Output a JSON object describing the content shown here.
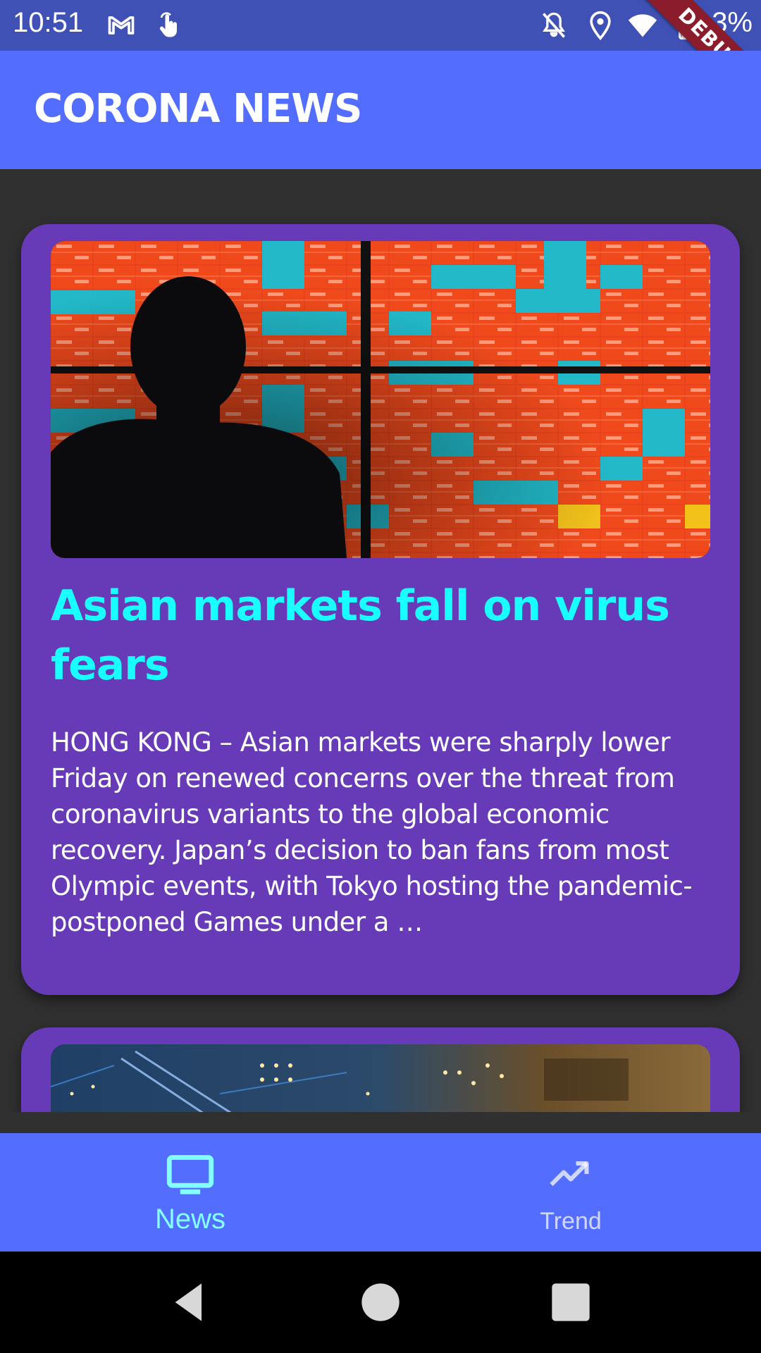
{
  "status_bar": {
    "time": "10:51",
    "battery_percent": "3%",
    "icons": [
      "gmail-icon",
      "touch-icon",
      "notifications-off-icon",
      "location-icon",
      "wifi-icon",
      "battery-icon"
    ]
  },
  "debug_banner": {
    "label": "DEBUG"
  },
  "app_bar": {
    "title": "CORONA NEWS"
  },
  "feed": {
    "articles": [
      {
        "title": "Asian markets fall on virus fears",
        "summary": "HONG KONG  – Asian markets were sharply lower Friday on renewed concerns over the threat from coronavirus variants to the global economic recovery. Japan’s decision to ban fans from most Olympic events, with Tokyo hosting the pandemic-postponed Games under a …",
        "image": "stock-market-board-photo"
      },
      {
        "title": "",
        "summary": "",
        "image": "circuit-board-photo"
      }
    ]
  },
  "bottom_nav": {
    "items": [
      {
        "label": "News",
        "icon": "tv-icon",
        "selected": true
      },
      {
        "label": "Trend",
        "icon": "trending-up-icon",
        "selected": false
      }
    ]
  },
  "system_nav": {
    "buttons": [
      "back-icon",
      "home-icon",
      "recents-icon"
    ]
  },
  "colors": {
    "status_bar": "#3F51B5",
    "app_bar": "#536DFE",
    "card": "#673AB7",
    "title_accent": "#18FFFF",
    "nav_selected": "#84FFFF",
    "background": "#303030"
  }
}
